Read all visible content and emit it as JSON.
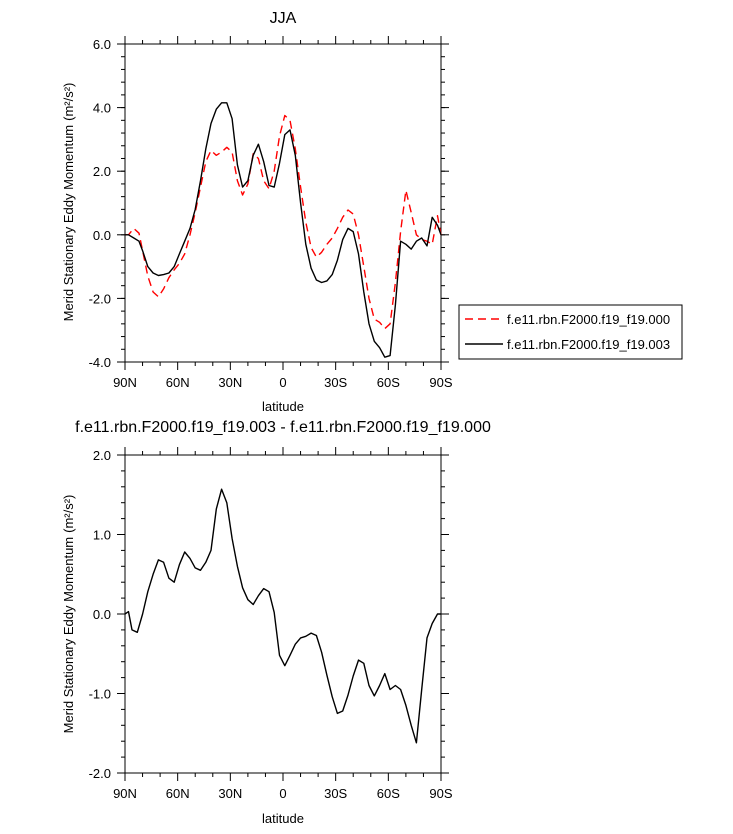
{
  "chart_data": [
    {
      "type": "line",
      "title": "JJA",
      "xlabel": "latitude",
      "ylabel": "Merid Stationary Eddy Momentum",
      "ylabel_unit": "(m²/s²)",
      "xlim": [
        90,
        -90
      ],
      "ylim": [
        -4,
        6
      ],
      "x_ticks": [
        "90N",
        "60N",
        "30N",
        "0",
        "30S",
        "60S",
        "90S"
      ],
      "y_ticks": [
        "-4.0",
        "-2.0",
        "0.0",
        "2.0",
        "4.0",
        "6.0"
      ],
      "legend_position": "right",
      "series": [
        {
          "name": "f.e11.rbn.F2000.f19_f19.000",
          "color": "#ff0000",
          "dash": "dashed",
          "x": [
            90,
            88,
            85,
            82,
            80,
            77,
            74,
            71,
            68,
            65,
            62,
            59,
            56,
            53,
            50,
            47,
            44,
            41,
            38,
            35,
            32,
            29,
            26,
            23,
            20,
            17,
            14,
            11,
            8,
            5,
            2,
            -1,
            -4,
            -7,
            -10,
            -13,
            -16,
            -19,
            -22,
            -25,
            -28,
            -31,
            -34,
            -37,
            -40,
            -43,
            -46,
            -49,
            -52,
            -55,
            -58,
            -61,
            -64,
            -67,
            -70,
            -73,
            -76,
            -79,
            -82,
            -85,
            -88,
            -90
          ],
          "y": [
            0.0,
            0.0,
            0.2,
            0.05,
            -0.5,
            -1.3,
            -1.8,
            -1.95,
            -1.7,
            -1.35,
            -1.1,
            -0.9,
            -0.6,
            0.0,
            0.7,
            1.5,
            2.3,
            2.65,
            2.5,
            2.6,
            2.75,
            2.6,
            1.7,
            1.25,
            1.6,
            2.55,
            2.4,
            1.7,
            1.45,
            2.0,
            3.1,
            3.75,
            3.6,
            2.7,
            1.5,
            0.4,
            -0.4,
            -0.7,
            -0.55,
            -0.3,
            -0.1,
            0.2,
            0.55,
            0.78,
            0.65,
            0.0,
            -1.0,
            -2.0,
            -2.65,
            -2.75,
            -2.95,
            -2.8,
            -1.5,
            0.1,
            1.4,
            0.7,
            0.0,
            -0.15,
            -0.2,
            -0.3,
            0.6,
            0.0
          ]
        },
        {
          "name": "f.e11.rbn.F2000.f19_f19.003",
          "color": "#000000",
          "dash": "solid",
          "x": [
            90,
            88,
            85,
            82,
            80,
            77,
            74,
            71,
            68,
            65,
            62,
            59,
            56,
            53,
            50,
            47,
            44,
            41,
            38,
            35,
            32,
            29,
            26,
            23,
            20,
            17,
            14,
            11,
            8,
            5,
            2,
            -1,
            -4,
            -7,
            -10,
            -13,
            -16,
            -19,
            -22,
            -25,
            -28,
            -31,
            -34,
            -37,
            -40,
            -43,
            -46,
            -49,
            -52,
            -55,
            -58,
            -61,
            -64,
            -67,
            -70,
            -73,
            -76,
            -79,
            -82,
            -85,
            -88,
            -90
          ],
          "y": [
            0.0,
            0.0,
            -0.1,
            -0.2,
            -0.5,
            -1.0,
            -1.2,
            -1.28,
            -1.25,
            -1.2,
            -1.0,
            -0.6,
            -0.2,
            0.2,
            0.8,
            1.7,
            2.7,
            3.5,
            3.95,
            4.15,
            4.15,
            3.65,
            2.2,
            1.5,
            1.7,
            2.5,
            2.85,
            2.3,
            1.55,
            1.5,
            2.25,
            3.15,
            3.3,
            2.5,
            1.0,
            -0.3,
            -1.05,
            -1.42,
            -1.5,
            -1.45,
            -1.25,
            -0.8,
            -0.15,
            0.2,
            0.1,
            -0.6,
            -1.8,
            -2.8,
            -3.35,
            -3.55,
            -3.85,
            -3.8,
            -2.2,
            -0.2,
            -0.3,
            -0.45,
            -0.2,
            -0.1,
            -0.35,
            0.55,
            0.3,
            0.0
          ]
        }
      ]
    },
    {
      "type": "line",
      "title": "f.e11.rbn.F2000.f19_f19.003 - f.e11.rbn.F2000.f19_f19.000",
      "xlabel": "latitude",
      "ylabel": "Merid Stationary Eddy Momentum",
      "ylabel_unit": "(m²/s²)",
      "xlim": [
        90,
        -90
      ],
      "ylim": [
        -2,
        2
      ],
      "x_ticks": [
        "90N",
        "60N",
        "30N",
        "0",
        "30S",
        "60S",
        "90S"
      ],
      "y_ticks": [
        "-2.0",
        "-1.0",
        "0.0",
        "1.0",
        "2.0"
      ],
      "series": [
        {
          "color": "#000000",
          "dash": "solid",
          "x": [
            90,
            88,
            86,
            83,
            80,
            77,
            74,
            71,
            68,
            65,
            62,
            59,
            56,
            53,
            50,
            47,
            44,
            41,
            38,
            35,
            32,
            29,
            26,
            23,
            20,
            17,
            14,
            11,
            8,
            5,
            2,
            -1,
            -4,
            -7,
            -10,
            -13,
            -16,
            -19,
            -22,
            -25,
            -28,
            -31,
            -34,
            -37,
            -40,
            -43,
            -46,
            -49,
            -52,
            -55,
            -58,
            -61,
            -64,
            -67,
            -70,
            -73,
            -76,
            -79,
            -82,
            -85,
            -88,
            -90
          ],
          "y": [
            0.0,
            0.03,
            -0.2,
            -0.23,
            0.0,
            0.28,
            0.5,
            0.68,
            0.65,
            0.45,
            0.4,
            0.62,
            0.78,
            0.7,
            0.58,
            0.55,
            0.65,
            0.8,
            1.32,
            1.57,
            1.4,
            0.95,
            0.6,
            0.33,
            0.18,
            0.12,
            0.23,
            0.32,
            0.28,
            0.02,
            -0.52,
            -0.65,
            -0.52,
            -0.38,
            -0.3,
            -0.28,
            -0.24,
            -0.27,
            -0.48,
            -0.77,
            -1.04,
            -1.25,
            -1.22,
            -1.02,
            -0.78,
            -0.58,
            -0.62,
            -0.9,
            -1.03,
            -0.9,
            -0.75,
            -0.95,
            -0.9,
            -0.95,
            -1.15,
            -1.4,
            -1.62,
            -0.95,
            -0.3,
            -0.12,
            0.0,
            0.0
          ]
        }
      ]
    }
  ]
}
